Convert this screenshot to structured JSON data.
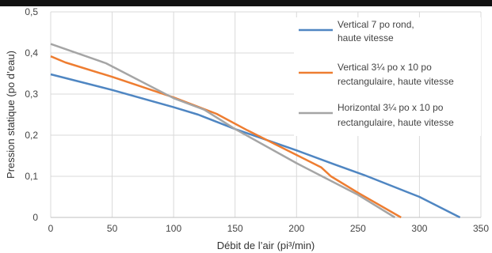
{
  "chart_data": {
    "type": "line",
    "title": "",
    "xlabel": "Débit de l’air (pi³/min)",
    "ylabel": "Pression statique (po d’eau)",
    "xlim": [
      0,
      350
    ],
    "ylim": [
      0,
      0.5
    ],
    "x_ticks": [
      "0",
      "50",
      "100",
      "150",
      "200",
      "250",
      "300",
      "350"
    ],
    "y_ticks": [
      "0",
      "0,1",
      "0,2",
      "0,3",
      "0,4",
      "0,5"
    ],
    "grid": true,
    "legend_position": "top-right",
    "series": [
      {
        "name_lines": [
          "Vertical 7 po rond,",
          "haute vitesse"
        ],
        "color": "#4f86c2",
        "x": [
          0,
          50,
          100,
          120,
          150,
          200,
          230,
          255,
          300,
          333
        ],
        "y": [
          0.348,
          0.31,
          0.268,
          0.25,
          0.215,
          0.163,
          0.13,
          0.103,
          0.05,
          0.0
        ]
      },
      {
        "name_lines": [
          "Vertical 3¼ po x 10 po",
          "rectangulaire, haute vitesse"
        ],
        "color": "#ee7d31",
        "x": [
          0,
          12,
          50,
          100,
          135,
          160,
          200,
          220,
          228,
          250,
          285
        ],
        "y": [
          0.392,
          0.377,
          0.342,
          0.292,
          0.252,
          0.212,
          0.152,
          0.122,
          0.1,
          0.06,
          0.0
        ]
      },
      {
        "name_lines": [
          "Horizontal 3¼ po x 10 po",
          "rectangulaire, haute vitesse"
        ],
        "color": "#a5a5a5",
        "x": [
          0,
          45,
          100,
          125,
          150,
          200,
          250,
          280
        ],
        "y": [
          0.422,
          0.375,
          0.29,
          0.262,
          0.215,
          0.132,
          0.055,
          0.0
        ]
      }
    ]
  }
}
